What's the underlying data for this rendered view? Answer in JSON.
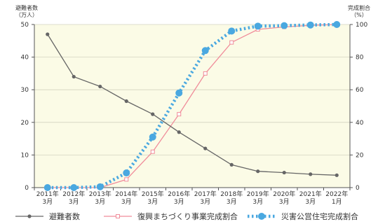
{
  "chart_data": {
    "type": "line",
    "x_labels": [
      [
        "2011年",
        "3月"
      ],
      [
        "2012年",
        "3月"
      ],
      [
        "2013年",
        "3月"
      ],
      [
        "2014年",
        "3月"
      ],
      [
        "2015年",
        "3月"
      ],
      [
        "2016年",
        "3月"
      ],
      [
        "2017年",
        "3月"
      ],
      [
        "2018年",
        "3月"
      ],
      [
        "2019年",
        "3月"
      ],
      [
        "2020年",
        "3月"
      ],
      [
        "2021年",
        "3月"
      ],
      [
        "2022年",
        "1月"
      ]
    ],
    "y_left": {
      "title_line1": "避難者数",
      "title_line2": "（万人）",
      "ylim": [
        0,
        50
      ],
      "ticks": [
        "0",
        "10",
        "20",
        "30",
        "40",
        "50"
      ]
    },
    "y_right": {
      "title_line1": "完成割合",
      "title_line2": "（%）",
      "ylim": [
        0,
        100
      ],
      "ticks": [
        "0",
        "20",
        "40",
        "60",
        "80",
        "100"
      ]
    },
    "series": [
      {
        "name": "避難者数",
        "axis": "left",
        "color": "#666666",
        "marker": "dot",
        "values": [
          47,
          34,
          31,
          26.5,
          22.5,
          17,
          12,
          7,
          5,
          4.6,
          4.1,
          3.8
        ]
      },
      {
        "name": "復興まちづくり事業完成割合",
        "axis": "right",
        "color": "#f08c9a",
        "marker": "square",
        "values": [
          0,
          0,
          0,
          5,
          22,
          45,
          70,
          89,
          97,
          98.5,
          99.5,
          100
        ]
      },
      {
        "name": "災害公営住宅完成割合",
        "axis": "right",
        "color": "#4aa8e0",
        "marker": "circle",
        "values": [
          0,
          0,
          0.5,
          9,
          31,
          58,
          84,
          96,
          99,
          99.3,
          99.7,
          100
        ]
      }
    ],
    "grid": true,
    "legend": "bottom"
  }
}
